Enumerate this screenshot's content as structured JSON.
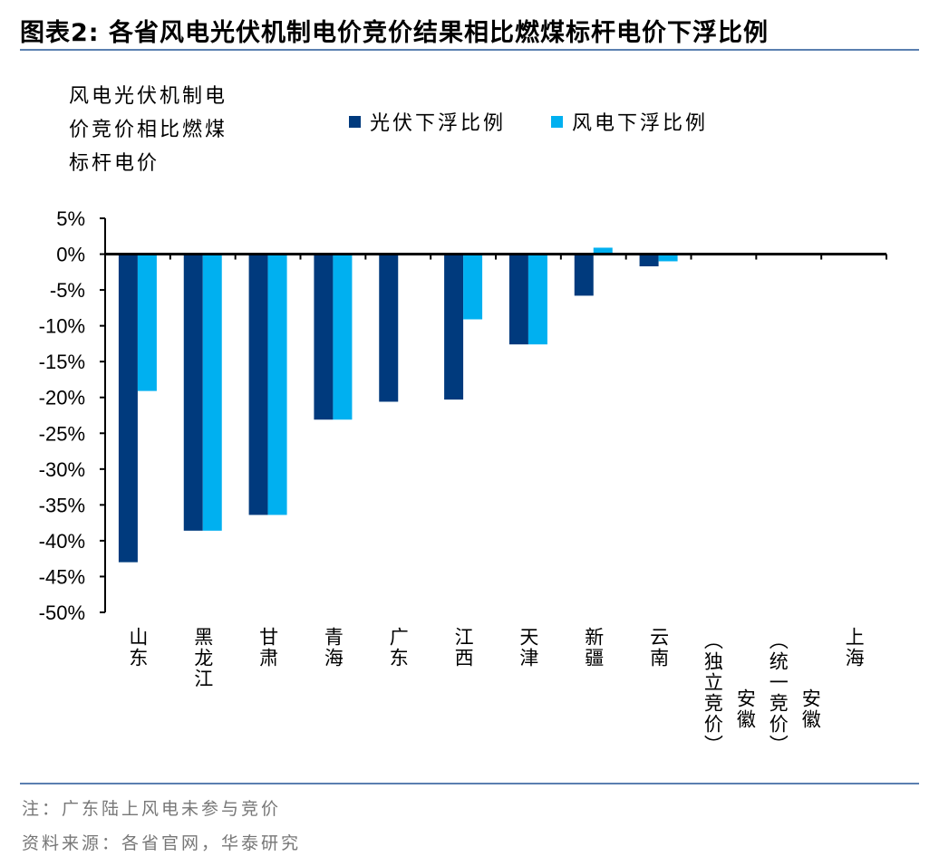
{
  "title": "图表2:  各省风电光伏机制电价竞价结果相比燃煤标杆电价下浮比例",
  "note": "注：广东陆上风电未参与竞价",
  "source": "资料来源：各省官网，华泰研究",
  "chart_data": {
    "type": "bar",
    "title": "各省风电光伏机制电价竞价结果相比燃煤标杆电价下浮比例",
    "ylabel": "风电光伏机制电价竞价相比燃煤标杆电价",
    "xlabel": "",
    "categories": [
      "山东",
      "黑龙江",
      "甘肃",
      "青海",
      "广东",
      "江西",
      "天津",
      "新疆",
      "云南",
      "安徽（独立竞价）",
      "安徽（统一竞价）",
      "上海"
    ],
    "series": [
      {
        "name": "光伏下浮比例",
        "color": "#003a7d",
        "values": [
          -43.0,
          -38.6,
          -36.4,
          -23.1,
          -20.6,
          -20.3,
          -12.6,
          -5.8,
          -1.7,
          0,
          0,
          0
        ]
      },
      {
        "name": "风电下浮比例",
        "color": "#00b0f0",
        "values": [
          -19.1,
          -38.6,
          -36.4,
          -23.1,
          null,
          -9.1,
          -12.6,
          0.9,
          -1.0,
          0,
          0,
          0
        ]
      }
    ],
    "ylim": [
      -50,
      5
    ],
    "yticks": [
      5,
      0,
      -5,
      -10,
      -15,
      -20,
      -25,
      -30,
      -35,
      -40,
      -45,
      -50
    ],
    "ytick_labels": [
      "5%",
      "0%",
      "-5%",
      "-10%",
      "-15%",
      "-20%",
      "-25%",
      "-30%",
      "-35%",
      "-40%",
      "-45%",
      "-50%"
    ],
    "grid": false,
    "legend_position": "top"
  }
}
